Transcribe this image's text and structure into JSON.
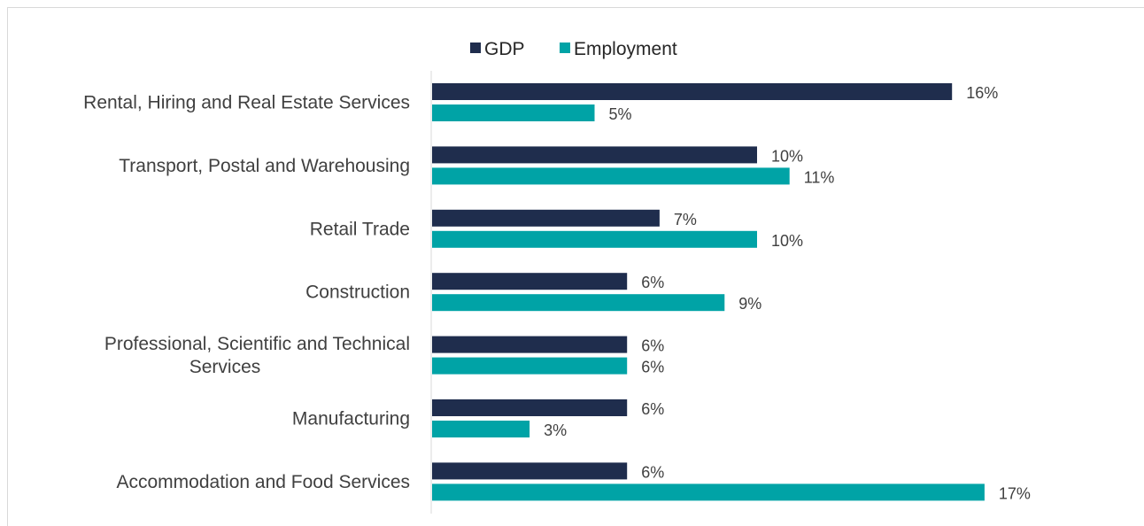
{
  "chart_data": {
    "type": "bar",
    "orientation": "horizontal",
    "title": "",
    "xlabel": "",
    "ylabel": "",
    "xlim": [
      0,
      17
    ],
    "grid": false,
    "legend_position": "top",
    "categories": [
      [
        "Rental, Hiring and Real Estate Services"
      ],
      [
        "Transport, Postal and Warehousing"
      ],
      [
        "Retail Trade"
      ],
      [
        "Construction"
      ],
      [
        "Professional, Scientific and Technical",
        "Services"
      ],
      [
        "Manufacturing"
      ],
      [
        "Accommodation and Food Services"
      ]
    ],
    "series": [
      {
        "name": "GDP",
        "color": "#1f2d4d",
        "values": [
          16,
          10,
          7,
          6,
          6,
          6,
          6
        ],
        "labels": [
          "16%",
          "10%",
          "7%",
          "6%",
          "6%",
          "6%",
          "6%"
        ]
      },
      {
        "name": "Employment",
        "color": "#00a3a6",
        "values": [
          5,
          11,
          10,
          9,
          6,
          3,
          17
        ],
        "labels": [
          "5%",
          "11%",
          "10%",
          "9%",
          "6%",
          "3%",
          "17%"
        ]
      }
    ]
  }
}
